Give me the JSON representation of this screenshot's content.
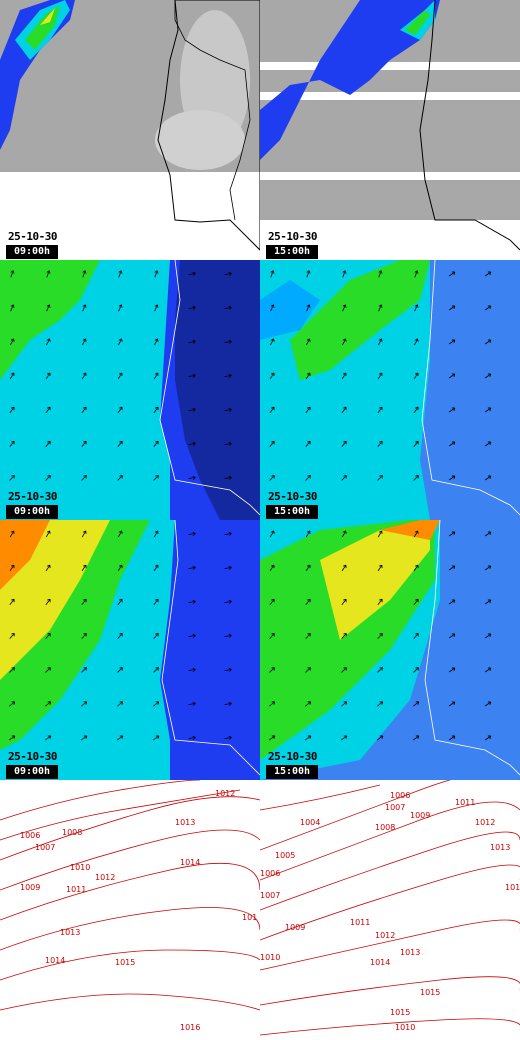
{
  "panels": [
    {
      "id": "precip-0900",
      "product": "precipitation",
      "date": "25-10-30",
      "time": "09:00h"
    },
    {
      "id": "precip-1500",
      "product": "precipitation",
      "date": "25-10-30",
      "time": "15:00h"
    },
    {
      "id": "wind-a-0900",
      "product": "wind",
      "date": "25-10-30",
      "time": "09:00h"
    },
    {
      "id": "wind-a-1500",
      "product": "wind",
      "date": "25-10-30",
      "time": "15:00h"
    },
    {
      "id": "wind-b-0900",
      "product": "wind",
      "date": "25-10-30",
      "time": "09:00h"
    },
    {
      "id": "wind-b-1500",
      "product": "wind",
      "date": "25-10-30",
      "time": "15:00h"
    },
    {
      "id": "pressure-left",
      "product": "pressure"
    },
    {
      "id": "pressure-right",
      "product": "pressure"
    }
  ],
  "pressure_left_labels": [
    "1012",
    "1006",
    "1007",
    "1008",
    "1013",
    "1010",
    "1014",
    "1009",
    "1011",
    "1012",
    "1013",
    "1014",
    "1015",
    "1016",
    "101"
  ],
  "pressure_right_labels": [
    "1006",
    "1007",
    "1008",
    "1009",
    "1011",
    "1012",
    "1013",
    "1004",
    "1005",
    "1006",
    "1007",
    "1009",
    "1010",
    "1011",
    "1012",
    "1013",
    "1014",
    "1015",
    "1010",
    "1014",
    "1015"
  ],
  "colors": {
    "background_gray": "#a8a8a8",
    "coast": "#000000",
    "contour": "#cc0000",
    "low": "#1e3cf0",
    "mid": "#00d2e6",
    "high": "#28dc28",
    "higher": "#e6e61e",
    "peak": "#ff8c00"
  }
}
